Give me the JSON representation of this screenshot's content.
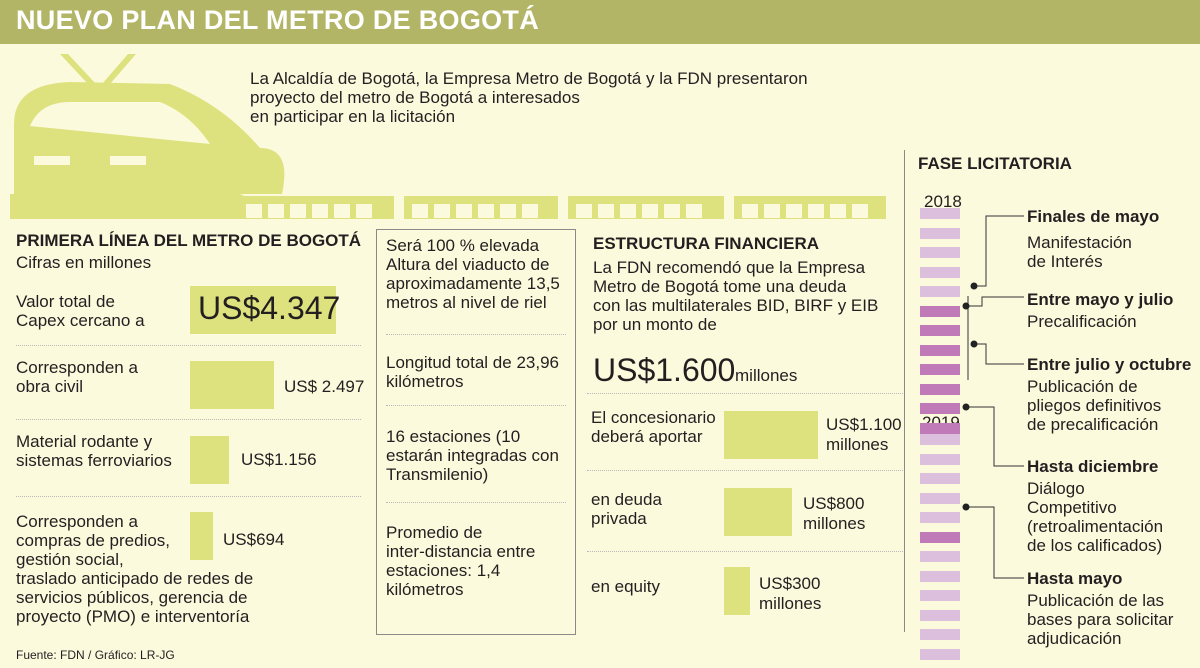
{
  "title": "NUEVO PLAN DEL METRO DE BOGOTÁ",
  "intro": [
    "La Alcaldía de Bogotá, la Empresa Metro de Bogotá y la FDN presentaron",
    "proyecto del metro de Bogotá a interesados",
    "en participar en la licitación"
  ],
  "primera": {
    "title": "PRIMERA LÍNEA DEL METRO DE BOGOTÁ",
    "subtitle": "Cifras en millones",
    "rows": [
      {
        "label": [
          "Valor total de",
          "Capex cercano a"
        ],
        "value": "US$4.347",
        "amount": 4347
      },
      {
        "label": [
          "Corresponden a",
          "obra civil"
        ],
        "value": "US$ 2.497",
        "amount": 2497
      },
      {
        "label": [
          "Material rodante y",
          "sistemas ferroviarios"
        ],
        "value": "US$1.156",
        "amount": 1156
      },
      {
        "label": [
          "Corresponden a",
          "compras de predios,",
          "gestión social,",
          "traslado anticipado de redes de",
          "servicios públicos, gerencia de",
          "proyecto (PMO) e interventoría"
        ],
        "value": "US$694",
        "amount": 694
      }
    ]
  },
  "facts": [
    [
      "Será 100 % elevada",
      "Altura del viaducto de",
      "aproximadamente 13,5",
      "metros al nivel de riel"
    ],
    [
      "Longitud total de 23,96",
      "kilómetros"
    ],
    [
      "16 estaciones (10",
      "estarán integradas con",
      "Transmilenio)"
    ],
    [
      "Promedio de",
      "inter-distancia entre",
      "estaciones: 1,4",
      "kilómetros"
    ]
  ],
  "estructura": {
    "title": "ESTRUCTURA FINANCIERA",
    "text": [
      "La FDN recomendó que la Empresa",
      "Metro de Bogotá tome una deuda",
      "con las multilaterales BID, BIRF y EIB",
      "por un monto de"
    ],
    "big_value": "US$1.600",
    "big_unit": "millones",
    "rows": [
      {
        "label": [
          "El concesionario",
          "deberá aportar"
        ],
        "value": [
          "US$1.100",
          "millones"
        ],
        "amount": 1100
      },
      {
        "label": [
          "en deuda",
          "privada"
        ],
        "value": [
          "US$800",
          "millones"
        ],
        "amount": 800
      },
      {
        "label": [
          "en equity"
        ],
        "value": [
          "US$300",
          "millones"
        ],
        "amount": 300
      }
    ]
  },
  "fase": {
    "title": "FASE LICITATORIA",
    "year1": "2018",
    "year2": "2019",
    "events": [
      {
        "title": "Finales de mayo",
        "desc": [
          "Manifestación",
          "de Interés"
        ]
      },
      {
        "title": "Entre mayo y julio",
        "desc": [
          "Precalificación"
        ]
      },
      {
        "title": "Entre julio y octubre",
        "desc": [
          "Publicación de",
          "pliegos definitivos",
          "de precalificación"
        ]
      },
      {
        "title": "Hasta diciembre",
        "desc": [
          "Diálogo",
          "Competitivo",
          "(retroalimentación",
          "de los calificados)"
        ]
      },
      {
        "title": "Hasta mayo",
        "desc": [
          "Publicación de las",
          "bases para solicitar",
          "adjudicación"
        ]
      }
    ],
    "months_2018": [
      "light",
      "light",
      "light",
      "light",
      "light",
      "dark",
      "dark",
      "dark",
      "dark",
      "dark",
      "dark",
      "dark"
    ],
    "months_2019": [
      "light",
      "light",
      "light",
      "light",
      "light",
      "dark",
      "light",
      "light",
      "light",
      "light",
      "light",
      "light"
    ]
  },
  "source": "Fuente: FDN / Gráfico: LR-JG",
  "colors": {
    "bar": "#dde27f",
    "header": "#b3b566",
    "month_light": "#dcbfdd",
    "month_dark": "#c07ab8",
    "background": "#fbfadd"
  },
  "chart_data": [
    {
      "type": "bar",
      "title": "PRIMERA LÍNEA DEL METRO DE BOGOTÁ",
      "subtitle": "Cifras en millones",
      "categories": [
        "Valor total de Capex cercano a",
        "Corresponden a obra civil",
        "Material rodante y sistemas ferroviarios",
        "Corresponden a compras de predios, gestión social, traslado anticipado de redes de servicios públicos, gerencia de proyecto (PMO) e interventoría"
      ],
      "values": [
        4347,
        2497,
        1156,
        694
      ]
    },
    {
      "type": "bar",
      "title": "ESTRUCTURA FINANCIERA",
      "categories": [
        "El concesionario deberá aportar",
        "en deuda privada",
        "en equity"
      ],
      "values": [
        1100,
        800,
        300
      ]
    }
  ]
}
